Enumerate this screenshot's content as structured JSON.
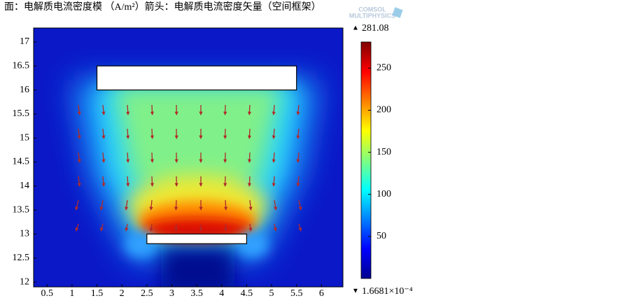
{
  "chart_data": {
    "type": "surface",
    "title": "面：电解质电流密度模 （A/m²）箭头：电解质电流密度矢量（空间框架）",
    "logo": [
      "COMSOL",
      "MULTIPHYSICS"
    ],
    "xlim": [
      0.23,
      6.43
    ],
    "ylim": [
      11.9,
      17.29
    ],
    "xticks": [
      0.5,
      1,
      1.5,
      2,
      2.5,
      3,
      3.5,
      4,
      4.5,
      5,
      5.5,
      6
    ],
    "yticks": [
      12,
      12.5,
      13,
      13.5,
      14,
      14.5,
      15,
      15.5,
      16,
      16.5,
      17
    ],
    "regions": [
      {
        "x": [
          1.5,
          5.5
        ],
        "y": [
          16,
          16.5
        ]
      },
      {
        "x": [
          2.5,
          4.5
        ],
        "y": [
          12.8,
          13
        ]
      }
    ],
    "colorbar": {
      "min": {
        "value": 0.00016681,
        "label": "1.6681×10⁻⁴"
      },
      "max": 281.08,
      "ticks": [
        50,
        100,
        150,
        200,
        250
      ]
    }
  }
}
